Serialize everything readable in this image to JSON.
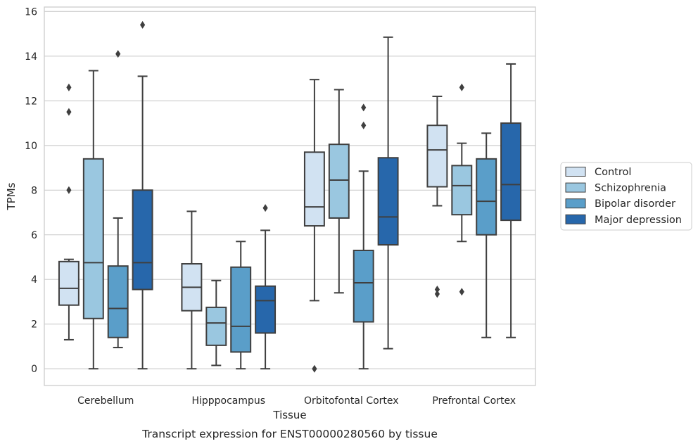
{
  "chart_data": {
    "type": "box",
    "xlabel": "Tissue",
    "ylabel": "TPMs",
    "caption": "Transcript expression for ENST00000280560 by tissue",
    "ylim": [
      -0.75,
      16.2
    ],
    "yticks": [
      "0",
      "2",
      "4",
      "6",
      "8",
      "10",
      "12",
      "14",
      "16"
    ],
    "grid": "horizontal",
    "legend_position": "right",
    "categories": [
      "Cerebellum",
      "Hipppocampus",
      "Orbitofontal Cortex",
      "Prefrontal Cortex"
    ],
    "series": [
      {
        "name": "Control",
        "color": "#d1e2f2",
        "boxes": [
          {
            "whislo": 1.3,
            "q1": 2.85,
            "med": 3.6,
            "q3": 4.8,
            "whishi": 4.9,
            "fliers": [
              8.0,
              11.5,
              12.6
            ]
          },
          {
            "whislo": 0.0,
            "q1": 2.6,
            "med": 3.65,
            "q3": 4.7,
            "whishi": 7.05,
            "fliers": []
          },
          {
            "whislo": 3.05,
            "q1": 6.4,
            "med": 7.25,
            "q3": 9.7,
            "whishi": 12.95,
            "fliers": [
              0.0
            ]
          },
          {
            "whislo": 7.3,
            "q1": 8.15,
            "med": 9.8,
            "q3": 10.9,
            "whishi": 12.2,
            "fliers": [
              3.35,
              3.55
            ]
          }
        ]
      },
      {
        "name": "Schizophrenia",
        "color": "#9ac7e0",
        "boxes": [
          {
            "whislo": 0.0,
            "q1": 2.25,
            "med": 4.75,
            "q3": 9.4,
            "whishi": 13.35,
            "fliers": []
          },
          {
            "whislo": 0.15,
            "q1": 1.05,
            "med": 2.05,
            "q3": 2.75,
            "whishi": 3.95,
            "fliers": []
          },
          {
            "whislo": 3.4,
            "q1": 6.75,
            "med": 8.45,
            "q3": 10.05,
            "whishi": 12.5,
            "fliers": []
          },
          {
            "whislo": 5.7,
            "q1": 6.9,
            "med": 8.2,
            "q3": 9.1,
            "whishi": 10.1,
            "fliers": [
              3.45,
              12.6
            ]
          }
        ]
      },
      {
        "name": "Bipolar disorder",
        "color": "#5a9ec9",
        "boxes": [
          {
            "whislo": 0.95,
            "q1": 1.4,
            "med": 2.7,
            "q3": 4.6,
            "whishi": 6.75,
            "fliers": [
              14.1
            ]
          },
          {
            "whislo": 0.0,
            "q1": 0.75,
            "med": 1.9,
            "q3": 4.55,
            "whishi": 5.7,
            "fliers": []
          },
          {
            "whislo": 0.0,
            "q1": 2.1,
            "med": 3.85,
            "q3": 5.3,
            "whishi": 8.85,
            "fliers": [
              10.9,
              11.7
            ]
          },
          {
            "whislo": 1.4,
            "q1": 6.0,
            "med": 7.5,
            "q3": 9.4,
            "whishi": 10.55,
            "fliers": []
          }
        ]
      },
      {
        "name": "Major depression",
        "color": "#2767ab",
        "boxes": [
          {
            "whislo": 0.0,
            "q1": 3.55,
            "med": 4.75,
            "q3": 8.0,
            "whishi": 13.1,
            "fliers": [
              15.4
            ]
          },
          {
            "whislo": 0.0,
            "q1": 1.6,
            "med": 3.05,
            "q3": 3.7,
            "whishi": 6.2,
            "fliers": [
              7.2
            ]
          },
          {
            "whislo": 0.9,
            "q1": 5.55,
            "med": 6.8,
            "q3": 9.45,
            "whishi": 14.85,
            "fliers": []
          },
          {
            "whislo": 1.4,
            "q1": 6.65,
            "med": 8.25,
            "q3": 11.0,
            "whishi": 13.65,
            "fliers": []
          }
        ]
      }
    ]
  }
}
